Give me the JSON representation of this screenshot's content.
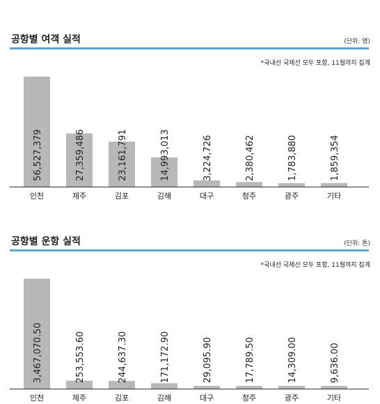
{
  "charts": [
    {
      "title": "공항별 여객 실적",
      "unit": "(단위: 명)",
      "note": "*국내선 국제선 모두 포함, 11월까지 집계",
      "value_labels": [
        "56,527,379",
        "27,359,486",
        "23,161,791",
        "14,993,013",
        "3,224,726",
        "2,380,462",
        "1,783,880",
        "1,859,354"
      ]
    },
    {
      "title": "공항별 운항 실적",
      "unit": "(단위: 톤)",
      "note": "*국내선 국제선 모두 포함, 11월까지 집계",
      "value_labels": [
        "3,467,070.50",
        "253,553.60",
        "244,637.30",
        "171,172.90",
        "29,095.90",
        "17,789.50",
        "14,309.00",
        "9,636.00"
      ]
    }
  ],
  "chart_data": [
    {
      "type": "bar",
      "title": "공항별 여객 실적",
      "categories": [
        "인천",
        "제주",
        "김포",
        "김해",
        "대구",
        "청주",
        "광주",
        "기타"
      ],
      "values": [
        56527379,
        27359486,
        23161791,
        14993013,
        3224726,
        2380462,
        1783880,
        1859354
      ],
      "bar_color": "#b8b8b8",
      "accent_color": "#5aa7cf"
    },
    {
      "type": "bar",
      "title": "공항별 운항 실적",
      "categories": [
        "인천",
        "제주",
        "김포",
        "김해",
        "대구",
        "청주",
        "광주",
        "기타"
      ],
      "values": [
        3467070.5,
        253553.6,
        244637.3,
        171172.9,
        29095.9,
        17789.5,
        14309.0,
        9636.0
      ],
      "bar_color": "#b8b8b8",
      "accent_color": "#5aa7cf"
    }
  ]
}
